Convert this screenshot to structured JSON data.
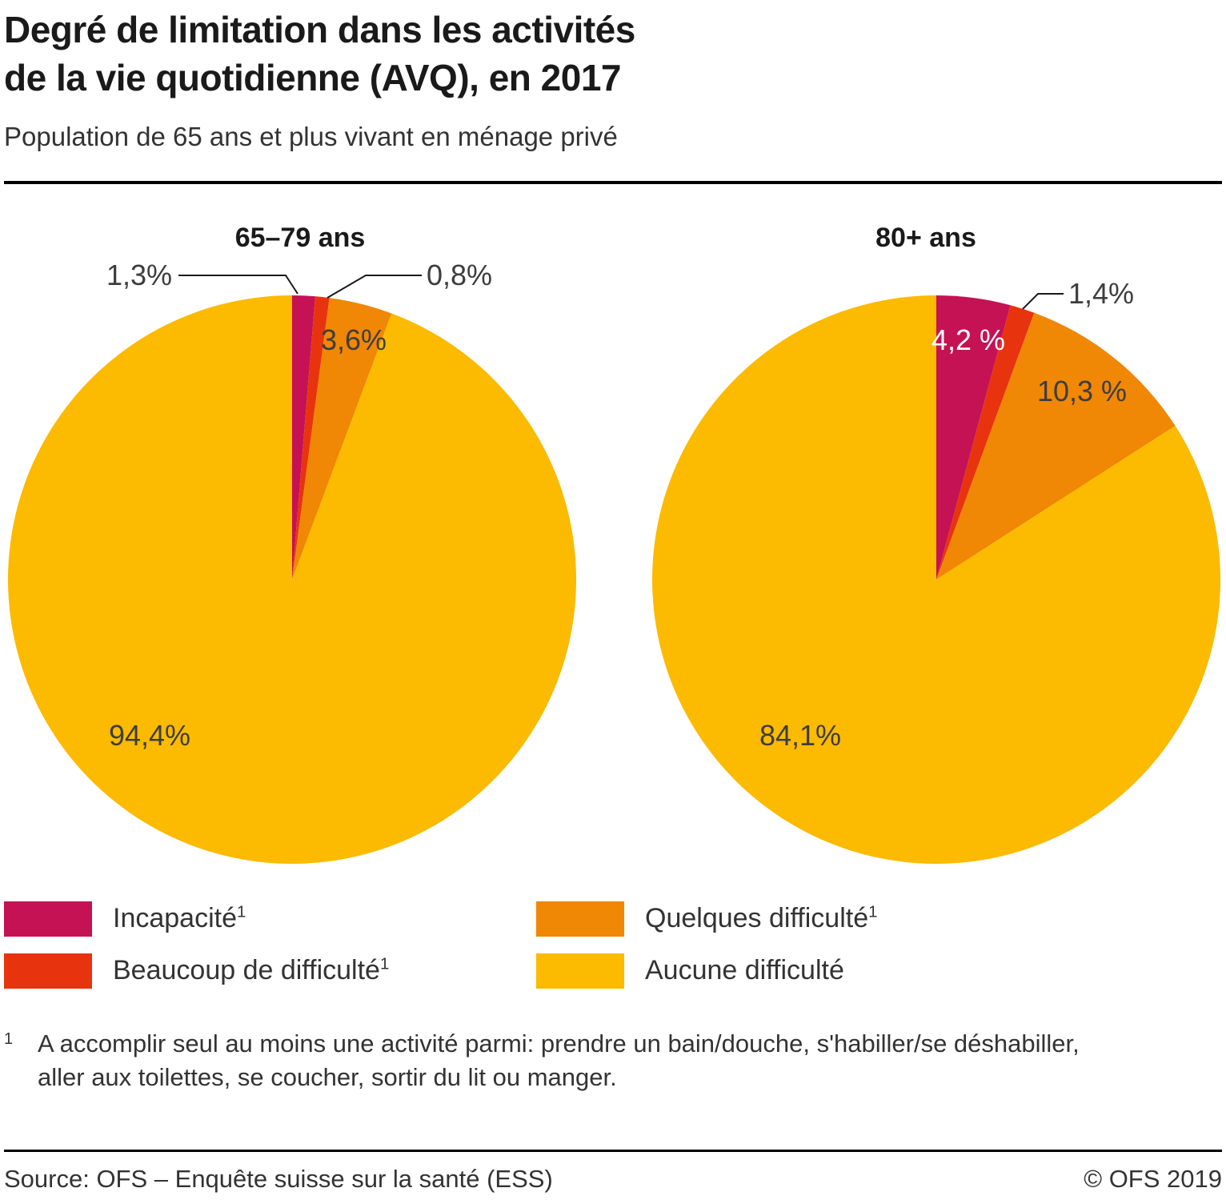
{
  "header": {
    "title_line1": "Degré de limitation dans les activités",
    "title_line2": "de la vie quotidienne (AVQ), en 2017",
    "subtitle": "Population de 65 ans et plus vivant en ménage privé"
  },
  "colors": {
    "incapacite": "#c51254",
    "beaucoup_de_difficulte": "#e7340f",
    "quelques_difficulte": "#f08705",
    "aucune_difficulte": "#fcba00",
    "text_dark": "#3d3d3d",
    "text_light": "#ffffff"
  },
  "chart_data": [
    {
      "type": "pie",
      "title": "65–79 ans",
      "unit": "%",
      "start_angle_deg": 0,
      "direction": "clockwise",
      "slices": [
        {
          "name": "Incapacité",
          "value": 1.3,
          "label": "1,3%",
          "color": "#c51254"
        },
        {
          "name": "Beaucoup de difficulté",
          "value": 0.8,
          "label": "0,8%",
          "color": "#e7340f"
        },
        {
          "name": "Quelques difficulté",
          "value": 3.6,
          "label": "3,6%",
          "color": "#f08705"
        },
        {
          "name": "Aucune difficulté",
          "value": 94.4,
          "label": "94,4%",
          "color": "#fcba00"
        }
      ]
    },
    {
      "type": "pie",
      "title": "80+ ans",
      "unit": "%",
      "start_angle_deg": 0,
      "direction": "clockwise",
      "slices": [
        {
          "name": "Incapacité",
          "value": 4.2,
          "label": "4,2 %",
          "color": "#c51254"
        },
        {
          "name": "Beaucoup de difficulté",
          "value": 1.4,
          "label": "1,4%",
          "color": "#e7340f"
        },
        {
          "name": "Quelques difficulté",
          "value": 10.3,
          "label": "10,3 %",
          "color": "#f08705"
        },
        {
          "name": "Aucune difficulté",
          "value": 84.1,
          "label": "84,1%",
          "color": "#fcba00"
        }
      ]
    }
  ],
  "legend": [
    {
      "label": "Incapacité",
      "footnote_mark": "1",
      "color": "#c51254"
    },
    {
      "label": "Beaucoup de difficulté",
      "footnote_mark": "1",
      "color": "#e7340f"
    },
    {
      "label": "Quelques difficulté",
      "footnote_mark": "1",
      "color": "#f08705"
    },
    {
      "label": "Aucune difficulté",
      "footnote_mark": "",
      "color": "#fcba00"
    }
  ],
  "footnote": {
    "mark": "1",
    "text": "A accomplir seul au moins une activité parmi: prendre un bain/douche, s'habiller/se déshabiller, aller aux toilettes, se coucher, sortir du lit ou manger."
  },
  "footer": {
    "source": "Source: OFS – Enquête suisse sur la santé (ESS)",
    "copyright": "© OFS 2019"
  }
}
